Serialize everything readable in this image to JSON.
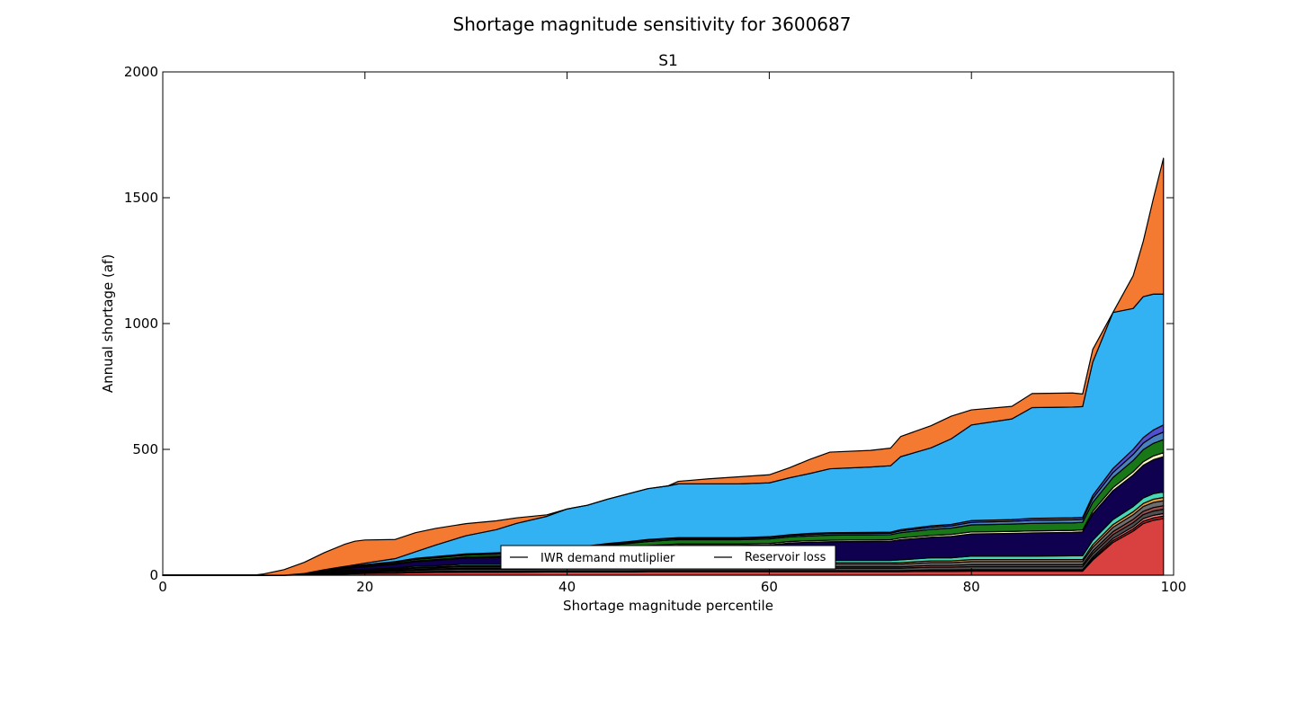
{
  "chart_data": {
    "type": "area",
    "title": "Shortage magnitude sensitivity for 3600687",
    "subtitle": "S1",
    "xlabel": "Shortage magnitude percentile",
    "ylabel": "Annual shortage (af)",
    "xlim": [
      0,
      100
    ],
    "ylim": [
      0,
      2000
    ],
    "x_ticks": [
      0,
      20,
      40,
      60,
      80,
      100
    ],
    "y_ticks": [
      0,
      500,
      1000,
      1500,
      2000
    ],
    "grid": false,
    "legend_position": "lower-center",
    "legend": [
      "IWR demand mutliplier",
      "Reservoir loss"
    ],
    "x": [
      0,
      5,
      9,
      10,
      12,
      14,
      16,
      18,
      19,
      20,
      23,
      25,
      27,
      30,
      33,
      35,
      38,
      40,
      42,
      44,
      46,
      48,
      50,
      51,
      54,
      57,
      60,
      62,
      64,
      66,
      70,
      72,
      73,
      76,
      78,
      80,
      84,
      86,
      90,
      91,
      92,
      94,
      96,
      97,
      98,
      99
    ],
    "series": [
      {
        "color": "#d94040",
        "values": [
          0,
          0,
          0,
          0,
          0,
          1,
          3,
          5,
          6,
          7,
          8,
          10,
          11,
          12,
          12,
          12,
          13,
          13,
          13,
          13,
          13,
          14,
          14,
          14,
          14,
          14,
          14,
          14,
          14,
          14,
          14,
          14,
          14,
          15,
          15,
          16,
          16,
          16,
          16,
          16,
          60,
          130,
          175,
          205,
          218,
          225
        ]
      },
      {
        "color": "#b02020",
        "values": [
          0,
          0,
          0,
          0,
          0,
          0,
          1,
          1,
          1,
          1,
          1,
          2,
          2,
          2,
          2,
          2,
          2,
          2,
          2,
          2,
          2,
          2,
          2,
          2,
          2,
          2,
          2,
          2,
          2,
          2,
          2,
          2,
          2,
          3,
          3,
          3,
          3,
          3,
          3,
          3,
          6,
          8,
          9,
          10,
          10,
          10
        ]
      },
      {
        "color": "#f08080",
        "values": [
          0,
          0,
          0,
          0,
          0,
          0,
          1,
          1,
          1,
          1,
          1,
          2,
          2,
          2,
          2,
          2,
          2,
          2,
          2,
          2,
          2,
          2,
          2,
          2,
          2,
          2,
          2,
          2,
          2,
          2,
          2,
          2,
          2,
          3,
          3,
          3,
          3,
          3,
          3,
          3,
          6,
          8,
          9,
          10,
          10,
          10
        ]
      },
      {
        "color": "#505050",
        "values": [
          0,
          0,
          0,
          0,
          0,
          1,
          2,
          3,
          4,
          4,
          5,
          6,
          7,
          8,
          8,
          8,
          8,
          9,
          9,
          9,
          9,
          9,
          9,
          9,
          9,
          9,
          10,
          10,
          10,
          10,
          10,
          10,
          10,
          11,
          11,
          12,
          12,
          12,
          12,
          12,
          14,
          15,
          16,
          16,
          17,
          17
        ]
      },
      {
        "color": "#9a4d4d",
        "values": [
          0,
          0,
          0,
          0,
          0,
          0,
          1,
          2,
          2,
          2,
          3,
          3,
          3,
          4,
          4,
          4,
          4,
          4,
          4,
          5,
          5,
          5,
          5,
          5,
          5,
          5,
          5,
          6,
          6,
          6,
          6,
          6,
          6,
          7,
          7,
          8,
          8,
          8,
          8,
          8,
          10,
          12,
          13,
          13,
          14,
          14
        ]
      },
      {
        "color": "#6e6e6e",
        "values": [
          0,
          0,
          0,
          0,
          0,
          1,
          2,
          3,
          3,
          3,
          4,
          5,
          5,
          6,
          6,
          6,
          6,
          7,
          7,
          7,
          7,
          8,
          8,
          8,
          8,
          8,
          8,
          9,
          9,
          9,
          9,
          9,
          10,
          11,
          11,
          12,
          12,
          12,
          12,
          12,
          15,
          17,
          18,
          19,
          20,
          20
        ]
      },
      {
        "color": "#e0a040",
        "values": [
          0,
          0,
          0,
          0,
          0,
          1,
          1,
          2,
          2,
          2,
          3,
          3,
          3,
          4,
          4,
          4,
          4,
          5,
          5,
          5,
          5,
          5,
          5,
          5,
          5,
          5,
          5,
          6,
          6,
          6,
          6,
          6,
          6,
          7,
          7,
          8,
          8,
          8,
          8,
          8,
          10,
          11,
          12,
          12,
          13,
          13
        ]
      },
      {
        "color": "#48d8b8",
        "values": [
          0,
          0,
          0,
          0,
          0,
          1,
          2,
          3,
          3,
          3,
          4,
          5,
          5,
          6,
          6,
          6,
          7,
          7,
          7,
          7,
          8,
          8,
          8,
          8,
          8,
          8,
          8,
          9,
          10,
          10,
          10,
          10,
          11,
          12,
          12,
          14,
          14,
          14,
          15,
          15,
          18,
          20,
          21,
          22,
          22,
          22
        ]
      },
      {
        "color": "#100050",
        "values": [
          0,
          0,
          0,
          0,
          0,
          1,
          3,
          6,
          8,
          10,
          14,
          18,
          21,
          24,
          27,
          30,
          34,
          38,
          42,
          50,
          55,
          60,
          64,
          66,
          66,
          66,
          66,
          70,
          72,
          74,
          75,
          76,
          80,
          82,
          85,
          88,
          90,
          92,
          93,
          95,
          105,
          115,
          125,
          130,
          135,
          140
        ]
      },
      {
        "color": "#f8f8c0",
        "values": [
          0,
          0,
          0,
          0,
          0,
          0,
          1,
          2,
          2,
          2,
          3,
          3,
          3,
          4,
          4,
          4,
          4,
          5,
          5,
          5,
          5,
          5,
          5,
          5,
          5,
          5,
          6,
          6,
          6,
          6,
          6,
          6,
          7,
          7,
          8,
          8,
          8,
          8,
          8,
          8,
          10,
          12,
          13,
          14,
          15,
          16
        ]
      },
      {
        "color": "#187818",
        "values": [
          0,
          0,
          0,
          0,
          0,
          1,
          2,
          3,
          3,
          4,
          5,
          6,
          7,
          8,
          9,
          10,
          11,
          12,
          13,
          14,
          15,
          16,
          17,
          17,
          17,
          17,
          18,
          18,
          19,
          20,
          20,
          20,
          21,
          24,
          25,
          28,
          29,
          30,
          30,
          30,
          35,
          40,
          45,
          48,
          50,
          52
        ]
      },
      {
        "color": "#4880c0",
        "values": [
          0,
          0,
          0,
          0,
          0,
          0,
          1,
          1,
          1,
          2,
          2,
          2,
          3,
          3,
          3,
          3,
          4,
          4,
          4,
          4,
          4,
          5,
          5,
          5,
          5,
          5,
          5,
          5,
          6,
          6,
          6,
          6,
          7,
          8,
          9,
          10,
          11,
          12,
          12,
          12,
          16,
          20,
          24,
          26,
          28,
          30
        ]
      },
      {
        "color": "#5050d0",
        "values": [
          0,
          0,
          0,
          0,
          0,
          0,
          1,
          1,
          1,
          1,
          1,
          2,
          2,
          2,
          2,
          2,
          3,
          3,
          3,
          3,
          3,
          3,
          3,
          3,
          3,
          3,
          4,
          4,
          4,
          4,
          4,
          4,
          5,
          6,
          6,
          7,
          7,
          8,
          8,
          8,
          12,
          16,
          20,
          22,
          25,
          28
        ]
      },
      {
        "color": "#32b2f2",
        "values": [
          0,
          0,
          0,
          0,
          0,
          0,
          1,
          2,
          4,
          6,
          12,
          26,
          46,
          72,
          92,
          113,
          132,
          152,
          162,
          176,
          190,
          202,
          208,
          214,
          214,
          214,
          214,
          226,
          238,
          254,
          260,
          264,
          290,
          310,
          340,
          380,
          400,
          440,
          440,
          440,
          530,
          620,
          560,
          560,
          540,
          520
        ]
      },
      {
        "color": "#f47a32",
        "values": [
          0,
          0,
          0,
          5,
          22,
          44,
          68,
          88,
          94,
          92,
          76,
          76,
          66,
          48,
          35,
          22,
          6,
          0,
          0,
          0,
          0,
          0,
          0,
          10,
          20,
          28,
          32,
          40,
          56,
          66,
          66,
          70,
          80,
          88,
          90,
          60,
          50,
          56,
          56,
          50,
          50,
          0,
          130,
          220,
          380,
          540
        ]
      }
    ]
  }
}
